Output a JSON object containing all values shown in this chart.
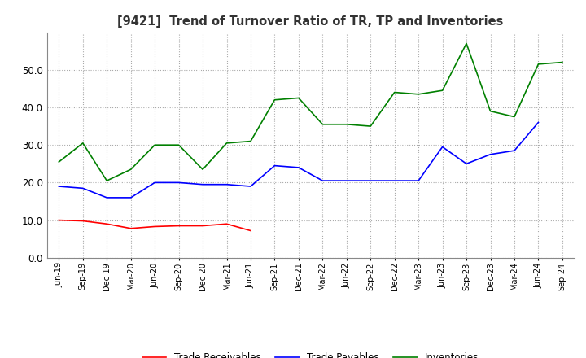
{
  "title": "[9421]  Trend of Turnover Ratio of TR, TP and Inventories",
  "ylim": [
    0.0,
    60.0
  ],
  "yticks": [
    0.0,
    10.0,
    20.0,
    30.0,
    40.0,
    50.0
  ],
  "x_labels": [
    "Jun-19",
    "Sep-19",
    "Dec-19",
    "Mar-20",
    "Jun-20",
    "Sep-20",
    "Dec-20",
    "Mar-21",
    "Jun-21",
    "Sep-21",
    "Dec-21",
    "Mar-22",
    "Jun-22",
    "Sep-22",
    "Dec-22",
    "Mar-23",
    "Jun-23",
    "Sep-23",
    "Dec-23",
    "Mar-24",
    "Jun-24",
    "Sep-24"
  ],
  "trade_receivables": [
    10.0,
    9.8,
    9.0,
    7.8,
    8.3,
    8.5,
    8.5,
    9.0,
    7.2,
    null,
    null,
    null,
    null,
    null,
    null,
    null,
    null,
    null,
    null,
    null,
    null,
    null
  ],
  "trade_payables": [
    19.0,
    18.5,
    16.0,
    16.0,
    20.0,
    20.0,
    19.5,
    19.5,
    19.0,
    24.5,
    24.0,
    20.5,
    20.5,
    20.5,
    20.5,
    20.5,
    29.5,
    25.0,
    27.5,
    28.5,
    36.0,
    null
  ],
  "inventories": [
    25.5,
    30.5,
    20.5,
    23.5,
    30.0,
    30.0,
    23.5,
    30.5,
    31.0,
    42.0,
    42.5,
    35.5,
    35.5,
    35.0,
    44.0,
    43.5,
    44.5,
    57.0,
    39.0,
    37.5,
    51.5,
    52.0
  ],
  "tr_color": "#ff0000",
  "tp_color": "#0000ff",
  "inv_color": "#008000",
  "legend_labels": [
    "Trade Receivables",
    "Trade Payables",
    "Inventories"
  ],
  "background_color": "#ffffff",
  "grid_color": "#aaaaaa"
}
